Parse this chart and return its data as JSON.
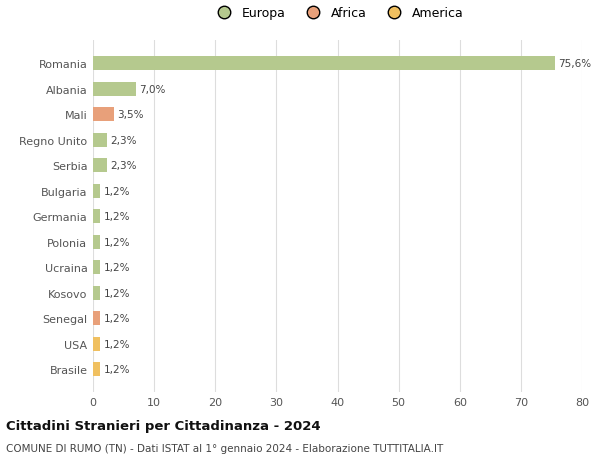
{
  "categories": [
    "Romania",
    "Albania",
    "Mali",
    "Regno Unito",
    "Serbia",
    "Bulgaria",
    "Germania",
    "Polonia",
    "Ucraina",
    "Kosovo",
    "Senegal",
    "USA",
    "Brasile"
  ],
  "values": [
    75.6,
    7.0,
    3.5,
    2.3,
    2.3,
    1.2,
    1.2,
    1.2,
    1.2,
    1.2,
    1.2,
    1.2,
    1.2
  ],
  "labels": [
    "75,6%",
    "7,0%",
    "3,5%",
    "2,3%",
    "2,3%",
    "1,2%",
    "1,2%",
    "1,2%",
    "1,2%",
    "1,2%",
    "1,2%",
    "1,2%",
    "1,2%"
  ],
  "colors": [
    "#b5c98e",
    "#b5c98e",
    "#e8a07a",
    "#b5c98e",
    "#b5c98e",
    "#b5c98e",
    "#b5c98e",
    "#b5c98e",
    "#b5c98e",
    "#b5c98e",
    "#e8a07a",
    "#f0c060",
    "#f0c060"
  ],
  "legend_labels": [
    "Europa",
    "Africa",
    "America"
  ],
  "legend_colors": [
    "#b5c98e",
    "#e8a07a",
    "#f0c060"
  ],
  "title": "Cittadini Stranieri per Cittadinanza - 2024",
  "subtitle": "COMUNE DI RUMO (TN) - Dati ISTAT al 1° gennaio 2024 - Elaborazione TUTTITALIA.IT",
  "xlim": [
    0,
    80
  ],
  "xticks": [
    0,
    10,
    20,
    30,
    40,
    50,
    60,
    70,
    80
  ],
  "background_color": "#ffffff",
  "grid_color": "#dddddd",
  "bar_height": 0.55
}
